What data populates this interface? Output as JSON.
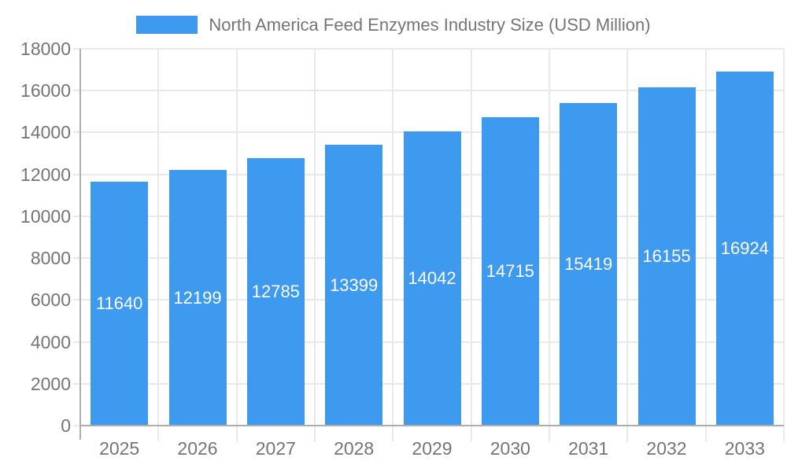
{
  "chart_data": {
    "type": "bar",
    "title": "North America Feed Enzymes Industry Size (USD Million)",
    "legend": [
      {
        "label": "North America Feed Enzymes Industry Size (USD Million)",
        "color": "#3D9AEF"
      }
    ],
    "legend_position": "top-center",
    "categories": [
      "2025",
      "2026",
      "2027",
      "2028",
      "2029",
      "2030",
      "2031",
      "2032",
      "2033"
    ],
    "series": [
      {
        "name": "North America Feed Enzymes Industry Size (USD Million)",
        "values": [
          11640,
          12199,
          12785,
          13399,
          14042,
          14715,
          15419,
          16155,
          16924
        ]
      }
    ],
    "bar_value_labels": [
      "11640",
      "12199",
      "12785",
      "13399",
      "14042",
      "14715",
      "15419",
      "16155",
      "16924"
    ],
    "xlabel": "",
    "ylabel": "",
    "ylim": [
      0,
      18000
    ],
    "ytick_step": 2000,
    "ytick_labels": [
      "0",
      "2000",
      "4000",
      "6000",
      "8000",
      "10000",
      "12000",
      "14000",
      "16000",
      "18000"
    ],
    "grid": true,
    "colors": {
      "bar": "#3D9AEF",
      "bar_label_text": "#FFFFFF",
      "axis_text": "#757575",
      "grid_line": "#E9E9E9",
      "axis_line": "#ADADAD",
      "background": "#FFFFFF"
    }
  }
}
